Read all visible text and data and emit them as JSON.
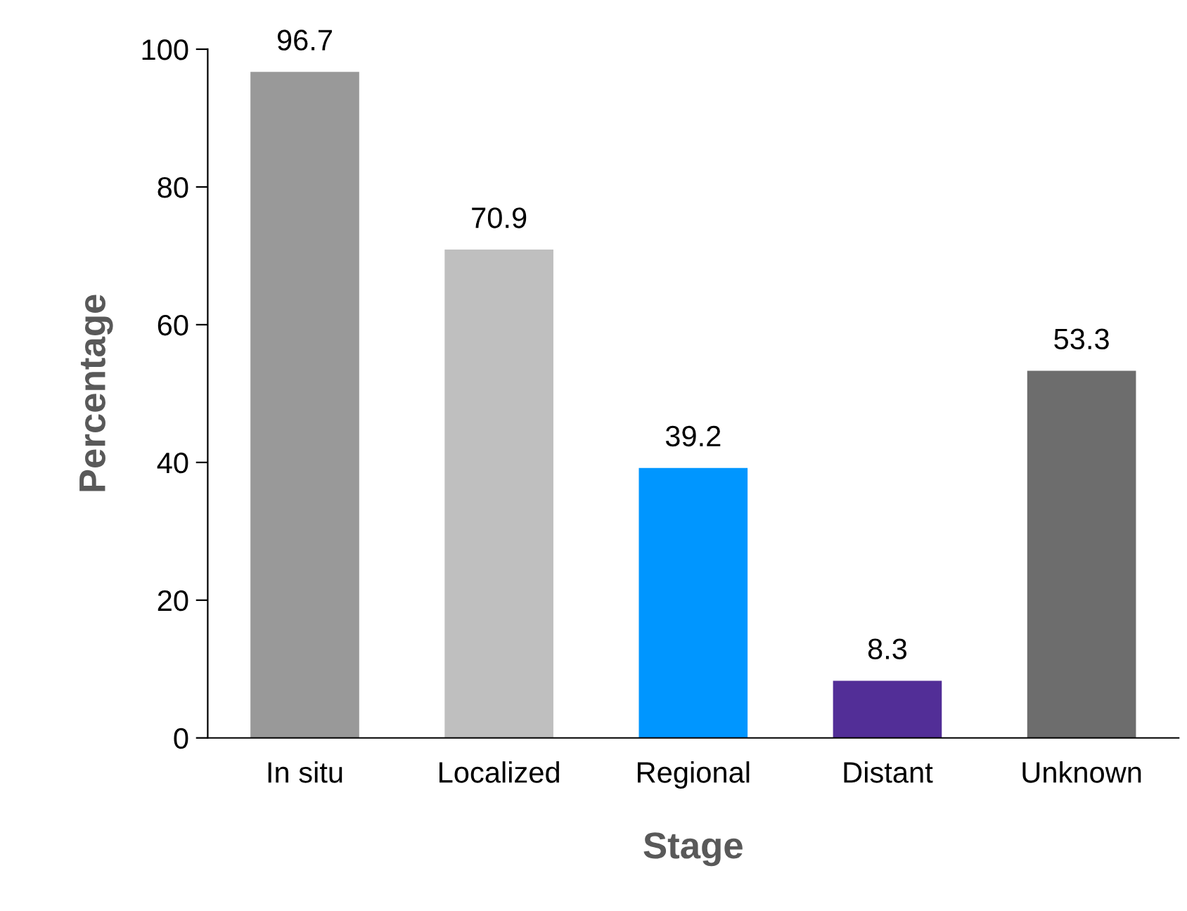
{
  "chart_data": {
    "type": "bar",
    "xlabel": "Stage",
    "ylabel": "Percentage",
    "categories": [
      "In situ",
      "Localized",
      "Regional",
      "Distant",
      "Unknown"
    ],
    "values": [
      96.7,
      70.9,
      39.2,
      8.3,
      53.3
    ],
    "colors": [
      "#999999",
      "#bfbfbf",
      "#0096ff",
      "#522e97",
      "#6d6d6d"
    ],
    "ylim": [
      0,
      100
    ],
    "yticks": [
      0,
      20,
      40,
      60,
      80,
      100
    ],
    "data_labels": true,
    "grid": false,
    "legend": false
  }
}
